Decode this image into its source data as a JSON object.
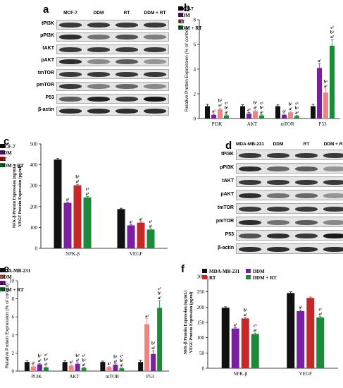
{
  "panel_letters": [
    "a",
    "b",
    "c",
    "d",
    "e",
    "f"
  ],
  "blot_a": {
    "headers": [
      "MCF-7",
      "DDM",
      "RT",
      "DDM + RT"
    ],
    "rows": [
      "tPI3K",
      "pPI3K",
      "tAKT",
      "pAKT",
      "tmTOR",
      "pmTOR",
      "P53",
      "β-actin"
    ],
    "intensity": [
      [
        0.85,
        0.85,
        0.85,
        0.85
      ],
      [
        0.9,
        0.6,
        0.75,
        0.55
      ],
      [
        0.85,
        0.85,
        0.85,
        0.85
      ],
      [
        0.9,
        0.5,
        0.7,
        0.45
      ],
      [
        0.85,
        0.85,
        0.85,
        0.85
      ],
      [
        0.85,
        0.55,
        0.65,
        0.5
      ],
      [
        0.7,
        0.95,
        0.85,
        1.0
      ],
      [
        0.9,
        0.9,
        0.9,
        0.9
      ]
    ]
  },
  "blot_d": {
    "headers": [
      "MDA-MB-231",
      "DDM",
      "RT",
      "DDM + RT"
    ],
    "rows": [
      "tPI3K",
      "pPI3K",
      "tAKT",
      "pAKT",
      "tmTOR",
      "pmTOR",
      "P53",
      "β-actin"
    ],
    "intensity": [
      [
        0.85,
        0.85,
        0.85,
        0.85
      ],
      [
        0.9,
        0.65,
        0.7,
        0.45
      ],
      [
        0.85,
        0.85,
        0.85,
        0.85
      ],
      [
        0.9,
        0.6,
        0.65,
        0.45
      ],
      [
        0.85,
        0.85,
        0.85,
        0.85
      ],
      [
        0.9,
        0.6,
        0.7,
        0.5
      ],
      [
        0.75,
        0.9,
        0.85,
        1.0
      ],
      [
        0.9,
        0.9,
        0.9,
        0.9
      ]
    ]
  },
  "chart_data": [
    {
      "id": "b",
      "type": "bar",
      "ylabel": "Relative Protein Expression (% of control)",
      "ylim": [
        0,
        8
      ],
      "yticks": [
        0,
        2,
        4,
        6,
        8
      ],
      "categories": [
        "PI3K",
        "AKT",
        "mTOR",
        "P53"
      ],
      "legend_position": "top-left",
      "series": [
        {
          "name": "MCF-7",
          "color": "#111111",
          "values": [
            1.0,
            1.0,
            1.0,
            1.0
          ],
          "errors": [
            0.15,
            0.12,
            0.1,
            0.15
          ]
        },
        {
          "name": "DDM",
          "color": "#7b1fa2",
          "values": [
            0.3,
            0.4,
            0.3,
            4.1
          ],
          "errors": [
            0.06,
            0.08,
            0.06,
            0.35
          ]
        },
        {
          "name": "RT",
          "color": "#f48080",
          "values": [
            0.75,
            0.6,
            0.5,
            2.1
          ],
          "errors": [
            0.1,
            0.08,
            0.08,
            0.3
          ]
        },
        {
          "name": "DDM + RT",
          "color": "#1b8a3a",
          "values": [
            0.25,
            0.25,
            0.2,
            5.9
          ],
          "errors": [
            0.05,
            0.05,
            0.05,
            0.5
          ]
        }
      ],
      "annotations": [
        [
          [],
          [
            "a²"
          ],
          [
            "b²",
            "a¹"
          ],
          [
            "c²",
            "b²",
            "a¹"
          ]
        ],
        [
          [],
          [
            "a¹"
          ],
          [
            "b²",
            "a¹"
          ],
          [
            "c²",
            "b²",
            "a¹"
          ]
        ],
        [
          [],
          [
            "a¹"
          ],
          [
            "b²",
            "a¹"
          ],
          [
            "c²",
            "b¹",
            "a²"
          ]
        ],
        [
          [],
          [
            "a²"
          ],
          [
            "b²",
            "a¹"
          ],
          [
            "c²",
            "b²",
            "a²"
          ]
        ]
      ]
    },
    {
      "id": "c",
      "type": "bar",
      "ylabel": "NFK-β Protein Expression (ng/mL)\nVEGF Protein Expression (pg/ml)",
      "ylim": [
        0,
        500
      ],
      "yticks": [
        0,
        100,
        200,
        300,
        400,
        500
      ],
      "categories": [
        "NFK-β",
        "VEGF"
      ],
      "legend_position": "top-right",
      "series": [
        {
          "name": "MCF-7",
          "color": "#111111",
          "values": [
            425,
            188
          ],
          "errors": [
            5,
            4
          ]
        },
        {
          "name": "DDM",
          "color": "#7b1fa2",
          "values": [
            218,
            110
          ],
          "errors": [
            4,
            4
          ]
        },
        {
          "name": "RT",
          "color": "#c62828",
          "values": [
            302,
            123
          ],
          "errors": [
            5,
            4
          ]
        },
        {
          "name": "DDM + RT",
          "color": "#1b8a3a",
          "values": [
            244,
            90
          ],
          "errors": [
            5,
            3
          ]
        }
      ],
      "annotations": [
        [
          [],
          [
            "a¹"
          ],
          [
            "b³",
            "a¹"
          ],
          [
            "c³",
            "a¹"
          ]
        ],
        [
          [],
          [
            "a¹"
          ],
          [
            "a¹"
          ],
          [
            "c³",
            "a¹"
          ]
        ]
      ]
    },
    {
      "id": "e",
      "type": "bar",
      "ylabel": "Relative Protein Expression (% of control)",
      "ylim": [
        0,
        10
      ],
      "yticks": [
        0,
        2,
        4,
        6,
        8,
        10
      ],
      "categories": [
        "PI3K",
        "AKT",
        "mTOR",
        "P53"
      ],
      "legend_position": "top-left",
      "series": [
        {
          "name": "MDA-MB-231",
          "color": "#111111",
          "values": [
            1.0,
            1.0,
            1.0,
            1.0
          ],
          "errors": [
            0.12,
            0.15,
            0.1,
            0.2
          ]
        },
        {
          "name": "DDM",
          "color": "#f48080",
          "values": [
            0.5,
            0.6,
            0.45,
            5.2
          ],
          "errors": [
            0.08,
            0.1,
            0.08,
            0.6
          ]
        },
        {
          "name": "RT",
          "color": "#7b1fa2",
          "values": [
            0.75,
            0.8,
            0.7,
            1.9
          ],
          "errors": [
            0.1,
            0.1,
            0.1,
            0.35
          ]
        },
        {
          "name": "DDM + RT",
          "color": "#1b8a3a",
          "values": [
            0.4,
            0.35,
            0.3,
            7.0
          ],
          "errors": [
            0.06,
            0.06,
            0.05,
            0.8
          ]
        }
      ],
      "annotations": [
        [
          [],
          [
            "a¹"
          ],
          [
            "b²",
            "a¹"
          ],
          [
            "c²",
            "b²",
            "a¹"
          ]
        ],
        [
          [],
          [
            "a¹"
          ],
          [
            "b²",
            "a¹"
          ],
          [
            "c²",
            "b²",
            "a¹"
          ]
        ],
        [
          [],
          [
            "a¹"
          ],
          [
            "b¹",
            "a¹"
          ],
          [
            "c²",
            "b¹",
            "a¹"
          ]
        ],
        [
          [],
          [
            "a²"
          ],
          [
            "b²",
            "a²"
          ],
          [
            "c²",
            "b²",
            "a²"
          ]
        ]
      ]
    },
    {
      "id": "f",
      "type": "bar",
      "ylabel": "NFK-β Protein Expression (ng/mL)\nVEGF Protein Expression (pg/ml)",
      "ylim": [
        0,
        300
      ],
      "yticks": [
        0,
        50,
        100,
        150,
        200,
        250,
        300
      ],
      "categories": [
        "NFK-β",
        "VEGF"
      ],
      "legend_position": "top",
      "series": [
        {
          "name": "MDA-MB-231",
          "color": "#111111",
          "values": [
            198,
            246
          ],
          "errors": [
            3,
            4
          ]
        },
        {
          "name": "DDM",
          "color": "#7b1fa2",
          "values": [
            130,
            187
          ],
          "errors": [
            3,
            3
          ]
        },
        {
          "name": "RT",
          "color": "#c62828",
          "values": [
            163,
            230
          ],
          "errors": [
            3,
            3
          ]
        },
        {
          "name": "DDM + RT",
          "color": "#1b8a3a",
          "values": [
            112,
            166
          ],
          "errors": [
            3,
            3
          ]
        }
      ],
      "annotations": [
        [
          [],
          [
            "a¹"
          ],
          [
            "b³",
            "a¹"
          ],
          [
            "c³",
            "a¹"
          ]
        ],
        [
          [],
          [
            "a¹"
          ],
          [],
          [
            "c¹",
            "a¹"
          ]
        ]
      ]
    }
  ]
}
